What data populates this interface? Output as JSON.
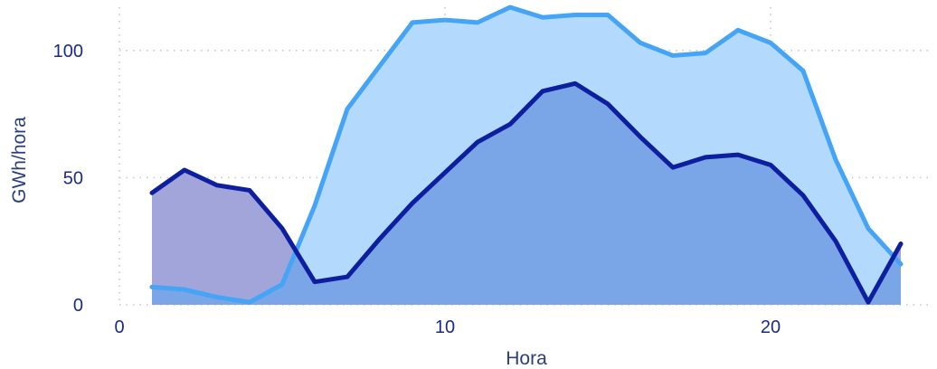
{
  "chart_data": {
    "type": "area",
    "xlabel": "Hora",
    "ylabel": "GWh/hora",
    "xlim": [
      0,
      25
    ],
    "ylim": [
      0,
      117
    ],
    "xticks": [
      0,
      10,
      20
    ],
    "yticks": [
      0,
      50,
      100
    ],
    "grid": true,
    "x": [
      1,
      2,
      3,
      4,
      5,
      6,
      7,
      8,
      9,
      10,
      11,
      12,
      13,
      14,
      15,
      16,
      17,
      18,
      19,
      20,
      21,
      22,
      23,
      24
    ],
    "series": [
      {
        "color": "#0d1f9e",
        "fill": "#a2a5d9",
        "values": [
          44,
          53,
          47,
          45,
          30,
          9,
          11,
          26,
          40,
          52,
          64,
          71,
          84,
          87,
          79,
          66,
          54,
          58,
          59,
          55,
          43,
          25,
          1,
          24
        ]
      },
      {
        "color": "#45a4f5",
        "fill": "#b3dafc",
        "values": [
          7,
          6,
          3,
          1,
          8,
          39,
          77,
          94,
          111,
          112,
          111,
          117,
          113,
          114,
          114,
          103,
          98,
          99,
          108,
          103,
          92,
          57,
          30,
          16
        ]
      }
    ],
    "overlap_fill": "#7aa6e8"
  }
}
